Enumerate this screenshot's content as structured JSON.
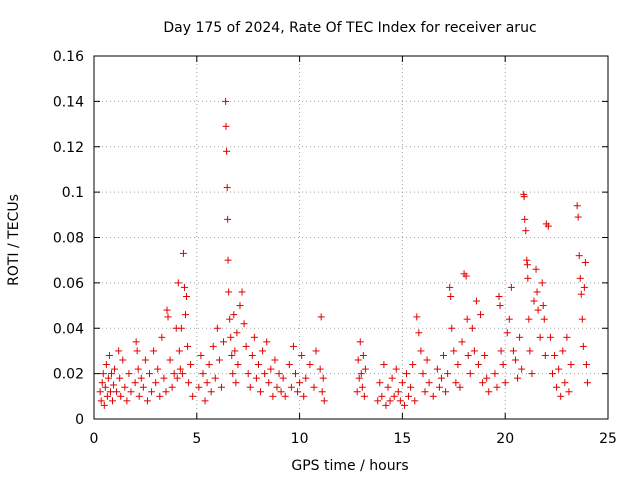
{
  "chart_data": {
    "type": "scatter",
    "title": "Day 175 of 2024, Rate Of TEC Index for receiver aruc",
    "xlabel": "GPS time / hours",
    "ylabel": "ROTI / TECUs",
    "xlim": [
      0,
      25
    ],
    "ylim": [
      0,
      0.16
    ],
    "x_ticks": [
      "0",
      "5",
      "10",
      "15",
      "20",
      "25"
    ],
    "y_ticks": [
      "0",
      "0.02",
      "0.04",
      "0.06",
      "0.08",
      "0.1",
      "0.12",
      "0.14",
      "0.16"
    ],
    "grid": true,
    "marker": "+",
    "color": "#e00000",
    "series": [
      {
        "name": "ROTI",
        "points": [
          [
            0.3,
            0.012
          ],
          [
            0.35,
            0.008
          ],
          [
            0.4,
            0.016
          ],
          [
            0.45,
            0.02
          ],
          [
            0.5,
            0.006
          ],
          [
            0.55,
            0.014
          ],
          [
            0.6,
            0.024
          ],
          [
            0.65,
            0.01
          ],
          [
            0.7,
            0.018
          ],
          [
            0.75,
            0.028
          ],
          [
            0.8,
            0.012
          ],
          [
            0.85,
            0.02
          ],
          [
            0.9,
            0.008
          ],
          [
            0.95,
            0.015
          ],
          [
            1.0,
            0.022
          ],
          [
            1.1,
            0.012
          ],
          [
            1.2,
            0.03
          ],
          [
            1.25,
            0.018
          ],
          [
            1.3,
            0.01
          ],
          [
            1.4,
            0.026
          ],
          [
            1.5,
            0.014
          ],
          [
            1.6,
            0.008
          ],
          [
            1.7,
            0.02
          ],
          [
            1.8,
            0.012
          ],
          [
            2.0,
            0.016
          ],
          [
            2.05,
            0.034
          ],
          [
            2.1,
            0.03
          ],
          [
            2.15,
            0.022
          ],
          [
            2.2,
            0.01
          ],
          [
            2.3,
            0.018
          ],
          [
            2.4,
            0.014
          ],
          [
            2.5,
            0.026
          ],
          [
            2.6,
            0.008
          ],
          [
            2.7,
            0.02
          ],
          [
            2.8,
            0.012
          ],
          [
            2.9,
            0.03
          ],
          [
            3.0,
            0.016
          ],
          [
            3.1,
            0.022
          ],
          [
            3.2,
            0.01
          ],
          [
            3.3,
            0.036
          ],
          [
            3.4,
            0.018
          ],
          [
            3.5,
            0.012
          ],
          [
            3.55,
            0.048
          ],
          [
            3.6,
            0.045
          ],
          [
            3.7,
            0.026
          ],
          [
            3.8,
            0.014
          ],
          [
            3.9,
            0.02
          ],
          [
            4.0,
            0.04
          ],
          [
            4.05,
            0.018
          ],
          [
            4.1,
            0.06
          ],
          [
            4.15,
            0.03
          ],
          [
            4.2,
            0.022
          ],
          [
            4.25,
            0.04
          ],
          [
            4.3,
            0.02
          ],
          [
            4.35,
            0.073
          ],
          [
            4.4,
            0.058
          ],
          [
            4.45,
            0.046
          ],
          [
            4.5,
            0.054
          ],
          [
            4.55,
            0.032
          ],
          [
            4.6,
            0.016
          ],
          [
            4.7,
            0.024
          ],
          [
            4.8,
            0.01
          ],
          [
            5.1,
            0.014
          ],
          [
            5.2,
            0.028
          ],
          [
            5.3,
            0.02
          ],
          [
            5.4,
            0.008
          ],
          [
            5.5,
            0.016
          ],
          [
            5.6,
            0.024
          ],
          [
            5.7,
            0.012
          ],
          [
            5.8,
            0.032
          ],
          [
            5.9,
            0.018
          ],
          [
            6.0,
            0.04
          ],
          [
            6.1,
            0.026
          ],
          [
            6.2,
            0.014
          ],
          [
            6.3,
            0.034
          ],
          [
            6.4,
            0.14
          ],
          [
            6.42,
            0.129
          ],
          [
            6.45,
            0.118
          ],
          [
            6.48,
            0.102
          ],
          [
            6.5,
            0.088
          ],
          [
            6.52,
            0.07
          ],
          [
            6.55,
            0.056
          ],
          [
            6.6,
            0.044
          ],
          [
            6.65,
            0.036
          ],
          [
            6.7,
            0.028
          ],
          [
            6.75,
            0.02
          ],
          [
            6.8,
            0.046
          ],
          [
            6.85,
            0.03
          ],
          [
            6.9,
            0.016
          ],
          [
            6.95,
            0.038
          ],
          [
            7.0,
            0.024
          ],
          [
            7.1,
            0.05
          ],
          [
            7.2,
            0.056
          ],
          [
            7.3,
            0.042
          ],
          [
            7.4,
            0.032
          ],
          [
            7.5,
            0.02
          ],
          [
            7.6,
            0.014
          ],
          [
            7.7,
            0.028
          ],
          [
            7.8,
            0.036
          ],
          [
            7.9,
            0.018
          ],
          [
            8.0,
            0.024
          ],
          [
            8.1,
            0.012
          ],
          [
            8.2,
            0.03
          ],
          [
            8.3,
            0.02
          ],
          [
            8.4,
            0.034
          ],
          [
            8.5,
            0.016
          ],
          [
            8.6,
            0.022
          ],
          [
            8.7,
            0.01
          ],
          [
            8.8,
            0.026
          ],
          [
            8.9,
            0.014
          ],
          [
            9.0,
            0.02
          ],
          [
            9.1,
            0.012
          ],
          [
            9.2,
            0.018
          ],
          [
            9.3,
            0.01
          ],
          [
            9.5,
            0.024
          ],
          [
            9.6,
            0.014
          ],
          [
            9.7,
            0.032
          ],
          [
            9.8,
            0.02
          ],
          [
            9.9,
            0.012
          ],
          [
            10.0,
            0.016
          ],
          [
            10.1,
            0.028
          ],
          [
            10.2,
            0.01
          ],
          [
            10.3,
            0.018
          ],
          [
            10.5,
            0.024
          ],
          [
            10.7,
            0.014
          ],
          [
            10.8,
            0.03
          ],
          [
            11.0,
            0.022
          ],
          [
            11.05,
            0.045
          ],
          [
            11.1,
            0.012
          ],
          [
            11.15,
            0.018
          ],
          [
            11.2,
            0.008
          ],
          [
            12.8,
            0.012
          ],
          [
            12.85,
            0.026
          ],
          [
            12.9,
            0.018
          ],
          [
            12.95,
            0.034
          ],
          [
            13.0,
            0.02
          ],
          [
            13.05,
            0.014
          ],
          [
            13.1,
            0.028
          ],
          [
            13.15,
            0.01
          ],
          [
            13.2,
            0.022
          ],
          [
            13.8,
            0.008
          ],
          [
            13.9,
            0.016
          ],
          [
            14.0,
            0.01
          ],
          [
            14.1,
            0.024
          ],
          [
            14.2,
            0.006
          ],
          [
            14.3,
            0.014
          ],
          [
            14.4,
            0.008
          ],
          [
            14.5,
            0.018
          ],
          [
            14.6,
            0.01
          ],
          [
            14.7,
            0.022
          ],
          [
            14.8,
            0.012
          ],
          [
            14.9,
            0.008
          ],
          [
            15.0,
            0.016
          ],
          [
            15.1,
            0.006
          ],
          [
            15.2,
            0.02
          ],
          [
            15.3,
            0.01
          ],
          [
            15.4,
            0.014
          ],
          [
            15.5,
            0.024
          ],
          [
            15.6,
            0.008
          ],
          [
            15.7,
            0.045
          ],
          [
            15.8,
            0.038
          ],
          [
            15.9,
            0.03
          ],
          [
            16.0,
            0.02
          ],
          [
            16.1,
            0.012
          ],
          [
            16.2,
            0.026
          ],
          [
            16.3,
            0.016
          ],
          [
            16.5,
            0.01
          ],
          [
            16.7,
            0.022
          ],
          [
            16.8,
            0.014
          ],
          [
            16.9,
            0.018
          ],
          [
            17.0,
            0.028
          ],
          [
            17.1,
            0.012
          ],
          [
            17.2,
            0.02
          ],
          [
            17.3,
            0.058
          ],
          [
            17.35,
            0.054
          ],
          [
            17.4,
            0.04
          ],
          [
            17.5,
            0.03
          ],
          [
            17.6,
            0.016
          ],
          [
            17.7,
            0.024
          ],
          [
            17.8,
            0.014
          ],
          [
            17.9,
            0.034
          ],
          [
            18.0,
            0.064
          ],
          [
            18.1,
            0.063
          ],
          [
            18.15,
            0.044
          ],
          [
            18.2,
            0.028
          ],
          [
            18.3,
            0.02
          ],
          [
            18.4,
            0.04
          ],
          [
            18.5,
            0.03
          ],
          [
            18.6,
            0.052
          ],
          [
            18.7,
            0.024
          ],
          [
            18.8,
            0.046
          ],
          [
            18.9,
            0.016
          ],
          [
            19.0,
            0.028
          ],
          [
            19.1,
            0.018
          ],
          [
            19.2,
            0.012
          ],
          [
            19.5,
            0.02
          ],
          [
            19.6,
            0.014
          ],
          [
            19.7,
            0.054
          ],
          [
            19.75,
            0.05
          ],
          [
            19.8,
            0.03
          ],
          [
            19.9,
            0.024
          ],
          [
            20.0,
            0.016
          ],
          [
            20.1,
            0.038
          ],
          [
            20.2,
            0.044
          ],
          [
            20.3,
            0.058
          ],
          [
            20.4,
            0.03
          ],
          [
            20.5,
            0.026
          ],
          [
            20.6,
            0.018
          ],
          [
            20.7,
            0.036
          ],
          [
            20.8,
            0.022
          ],
          [
            20.9,
            0.099
          ],
          [
            20.92,
            0.098
          ],
          [
            20.95,
            0.088
          ],
          [
            21.0,
            0.083
          ],
          [
            21.05,
            0.07
          ],
          [
            21.08,
            0.068
          ],
          [
            21.1,
            0.062
          ],
          [
            21.15,
            0.044
          ],
          [
            21.2,
            0.03
          ],
          [
            21.3,
            0.02
          ],
          [
            21.4,
            0.052
          ],
          [
            21.5,
            0.066
          ],
          [
            21.55,
            0.056
          ],
          [
            21.6,
            0.048
          ],
          [
            21.7,
            0.036
          ],
          [
            21.8,
            0.06
          ],
          [
            21.85,
            0.05
          ],
          [
            21.9,
            0.044
          ],
          [
            21.95,
            0.028
          ],
          [
            22.0,
            0.086
          ],
          [
            22.1,
            0.085
          ],
          [
            22.2,
            0.036
          ],
          [
            22.3,
            0.02
          ],
          [
            22.4,
            0.028
          ],
          [
            22.5,
            0.014
          ],
          [
            22.6,
            0.022
          ],
          [
            22.7,
            0.01
          ],
          [
            22.8,
            0.03
          ],
          [
            22.9,
            0.016
          ],
          [
            23.0,
            0.036
          ],
          [
            23.1,
            0.012
          ],
          [
            23.2,
            0.024
          ],
          [
            23.5,
            0.094
          ],
          [
            23.55,
            0.089
          ],
          [
            23.6,
            0.072
          ],
          [
            23.65,
            0.062
          ],
          [
            23.7,
            0.055
          ],
          [
            23.75,
            0.044
          ],
          [
            23.8,
            0.032
          ],
          [
            23.85,
            0.058
          ],
          [
            23.9,
            0.069
          ],
          [
            23.95,
            0.024
          ],
          [
            24.0,
            0.016
          ]
        ]
      }
    ]
  }
}
